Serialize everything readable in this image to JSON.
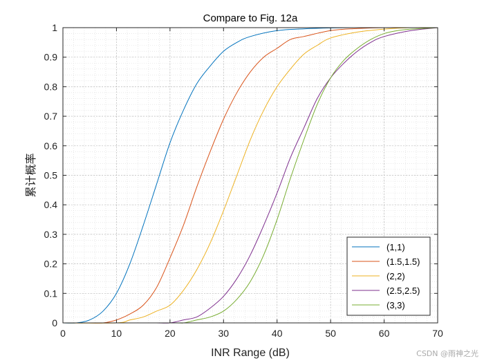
{
  "chart_data": {
    "type": "line",
    "title": "Compare to Fig. 12a",
    "xlabel": "INR Range (dB)",
    "ylabel": "累计概率",
    "xlim": [
      0,
      70
    ],
    "ylim": [
      0,
      1
    ],
    "x_ticks": [
      "0",
      "10",
      "20",
      "30",
      "40",
      "50",
      "60",
      "70"
    ],
    "y_ticks": [
      "0",
      "0.1",
      "0.2",
      "0.3",
      "0.4",
      "0.5",
      "0.6",
      "0.7",
      "0.8",
      "0.9",
      "1"
    ],
    "grid": true,
    "minor_grid": true,
    "legend_position": "bottom-right",
    "series": [
      {
        "name": "(1,1)",
        "color": "#0072BD",
        "x": [
          0,
          2.5,
          5,
          7.5,
          10,
          12.5,
          15,
          17.5,
          20,
          22.5,
          25,
          27.5,
          30,
          32.5,
          35,
          40,
          45,
          50,
          55,
          60,
          65,
          70
        ],
        "y": [
          0,
          0,
          0.01,
          0.04,
          0.1,
          0.2,
          0.33,
          0.47,
          0.61,
          0.72,
          0.81,
          0.87,
          0.92,
          0.95,
          0.97,
          0.99,
          0.996,
          0.999,
          1,
          1,
          1,
          1
        ]
      },
      {
        "name": "(1.5,1.5)",
        "color": "#D95319",
        "x": [
          0,
          5,
          7.5,
          10,
          12.5,
          15,
          17.5,
          20,
          22.5,
          25,
          27.5,
          30,
          32.5,
          35,
          37.5,
          40,
          42.5,
          45,
          50,
          55,
          60,
          65,
          70
        ],
        "y": [
          0,
          0,
          0,
          0.01,
          0.03,
          0.06,
          0.12,
          0.22,
          0.33,
          0.46,
          0.58,
          0.69,
          0.78,
          0.85,
          0.9,
          0.93,
          0.96,
          0.97,
          0.99,
          0.997,
          1,
          1,
          1
        ]
      },
      {
        "name": "(2,2)",
        "color": "#EDB120",
        "x": [
          0,
          10,
          12.5,
          15,
          17.5,
          20,
          22.5,
          25,
          27.5,
          30,
          32.5,
          35,
          37.5,
          40,
          42.5,
          45,
          47.5,
          50,
          55,
          60,
          65,
          70
        ],
        "y": [
          0,
          0,
          0.01,
          0.02,
          0.04,
          0.06,
          0.11,
          0.18,
          0.27,
          0.38,
          0.5,
          0.62,
          0.72,
          0.8,
          0.86,
          0.91,
          0.94,
          0.965,
          0.985,
          0.995,
          1,
          1
        ]
      },
      {
        "name": "(2.5,2.5)",
        "color": "#7E2F8E",
        "x": [
          0,
          15,
          17.5,
          20,
          22.5,
          25,
          27.5,
          30,
          32.5,
          35,
          37.5,
          40,
          42.5,
          45,
          47.5,
          50,
          52.5,
          55,
          57.5,
          60,
          65,
          70
        ],
        "y": [
          0,
          0,
          0,
          0,
          0.01,
          0.02,
          0.05,
          0.09,
          0.15,
          0.23,
          0.33,
          0.44,
          0.56,
          0.66,
          0.76,
          0.83,
          0.88,
          0.92,
          0.95,
          0.97,
          0.99,
          1
        ]
      },
      {
        "name": "(3,3)",
        "color": "#77AC30",
        "x": [
          0,
          20,
          22.5,
          25,
          27.5,
          30,
          32.5,
          35,
          37.5,
          40,
          42.5,
          45,
          47.5,
          50,
          52.5,
          55,
          57.5,
          60,
          62.5,
          65,
          70
        ],
        "y": [
          0,
          0,
          0,
          0.01,
          0.02,
          0.04,
          0.08,
          0.14,
          0.23,
          0.35,
          0.49,
          0.62,
          0.74,
          0.83,
          0.89,
          0.93,
          0.96,
          0.98,
          0.99,
          0.995,
          1
        ]
      }
    ]
  },
  "watermark": "CSDN @雨神之光"
}
